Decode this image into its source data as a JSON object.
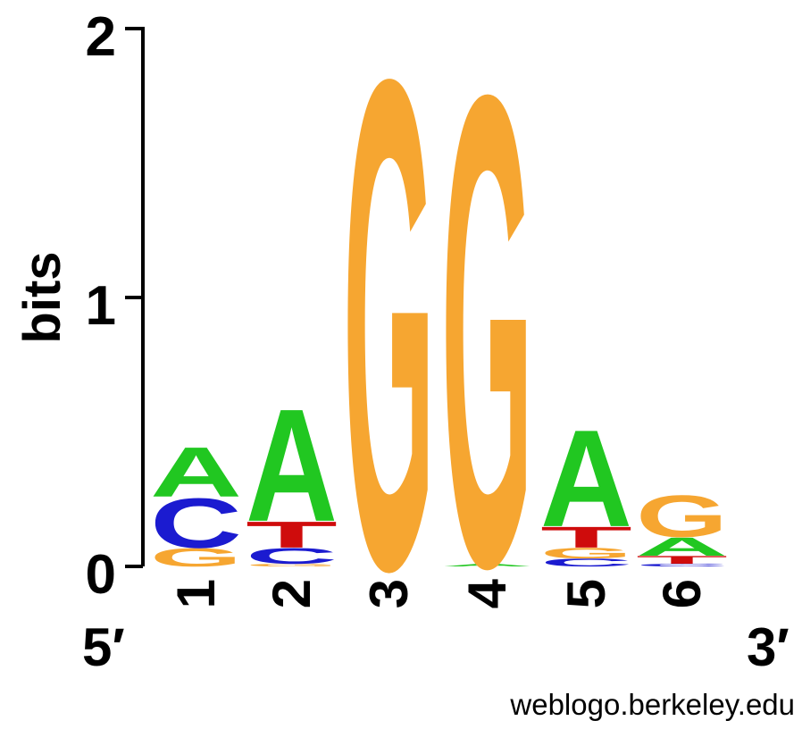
{
  "chart_data": {
    "type": "sequence-logo",
    "ylabel": "bits",
    "ylim": [
      0,
      2
    ],
    "y_ticks": [
      "0",
      "1",
      "2"
    ],
    "positions": [
      "1",
      "2",
      "3",
      "4",
      "5",
      "6"
    ],
    "end_labels": {
      "left": "5′",
      "right": "3′"
    },
    "footer": "weblogo.berkeley.edu",
    "colors": {
      "A": "#21c721",
      "C": "#1b1bd0",
      "G": "#f6a631",
      "T": "#cf0c0c"
    },
    "stacks": [
      {
        "position": "1",
        "letters": [
          {
            "base": "G",
            "height": 0.07
          },
          {
            "base": "C",
            "height": 0.19
          },
          {
            "base": "A",
            "height": 0.19
          }
        ]
      },
      {
        "position": "2",
        "letters": [
          {
            "base": "G",
            "height": 0.01
          },
          {
            "base": "C",
            "height": 0.06
          },
          {
            "base": "T",
            "height": 0.1
          },
          {
            "base": "A",
            "height": 0.43
          }
        ]
      },
      {
        "position": "3",
        "letters": [
          {
            "base": "G",
            "height": 1.87
          }
        ]
      },
      {
        "position": "4",
        "letters": [
          {
            "base": "A",
            "height": 0.01
          },
          {
            "base": "G",
            "height": 1.8
          }
        ]
      },
      {
        "position": "5",
        "letters": [
          {
            "base": "C",
            "height": 0.03
          },
          {
            "base": "G",
            "height": 0.04
          },
          {
            "base": "T",
            "height": 0.08
          },
          {
            "base": "A",
            "height": 0.37
          }
        ]
      },
      {
        "position": "6",
        "letters": [
          {
            "base": "C",
            "height": 0.01
          },
          {
            "base": "T",
            "height": 0.03
          },
          {
            "base": "A",
            "height": 0.07
          },
          {
            "base": "G",
            "height": 0.16
          }
        ]
      }
    ]
  }
}
